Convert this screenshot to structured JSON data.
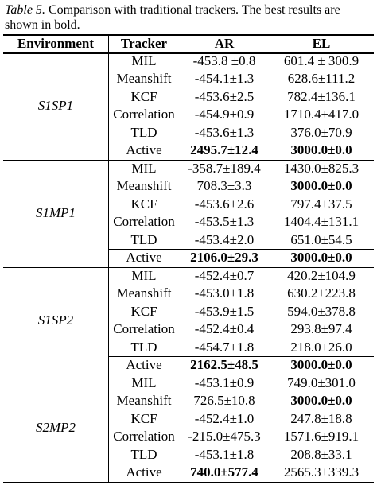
{
  "caption": {
    "label": "Table 5.",
    "text": " Comparison with traditional trackers. The best results are shown in bold."
  },
  "table": {
    "headers": [
      "Environment",
      "Tracker",
      "AR",
      "EL"
    ],
    "groups": [
      {
        "environment": "S1SP1",
        "rows": [
          {
            "tracker": "MIL",
            "ar": "-453.8 ±0.8",
            "el": "601.4 ± 300.9",
            "ar_bold": false,
            "el_bold": false
          },
          {
            "tracker": "Meanshift",
            "ar": "-454.1±1.3",
            "el": "628.6±111.2",
            "ar_bold": false,
            "el_bold": false
          },
          {
            "tracker": "KCF",
            "ar": "-453.6±2.5",
            "el": "782.4±136.1",
            "ar_bold": false,
            "el_bold": false
          },
          {
            "tracker": "Correlation",
            "ar": "-454.9±0.9",
            "el": "1710.4±417.0",
            "ar_bold": false,
            "el_bold": false
          },
          {
            "tracker": "TLD",
            "ar": "-453.6±1.3",
            "el": "376.0±70.9",
            "ar_bold": false,
            "el_bold": false
          },
          {
            "tracker": "Active",
            "ar": "2495.7±12.4",
            "el": "3000.0±0.0",
            "ar_bold": true,
            "el_bold": true
          }
        ]
      },
      {
        "environment": "S1MP1",
        "rows": [
          {
            "tracker": "MIL",
            "ar": "-358.7±189.4",
            "el": "1430.0±825.3",
            "ar_bold": false,
            "el_bold": false
          },
          {
            "tracker": "Meanshift",
            "ar": "708.3±3.3",
            "el": "3000.0±0.0",
            "ar_bold": false,
            "el_bold": true
          },
          {
            "tracker": "KCF",
            "ar": "-453.6±2.6",
            "el": "797.4±37.5",
            "ar_bold": false,
            "el_bold": false
          },
          {
            "tracker": "Correlation",
            "ar": "-453.5±1.3",
            "el": "1404.4±131.1",
            "ar_bold": false,
            "el_bold": false
          },
          {
            "tracker": "TLD",
            "ar": "-453.4±2.0",
            "el": "651.0±54.5",
            "ar_bold": false,
            "el_bold": false
          },
          {
            "tracker": "Active",
            "ar": "2106.0±29.3",
            "el": "3000.0±0.0",
            "ar_bold": true,
            "el_bold": true
          }
        ]
      },
      {
        "environment": "S1SP2",
        "rows": [
          {
            "tracker": "MIL",
            "ar": "-452.4±0.7",
            "el": "420.2±104.9",
            "ar_bold": false,
            "el_bold": false
          },
          {
            "tracker": "Meanshift",
            "ar": "-453.0±1.8",
            "el": "630.2±223.8",
            "ar_bold": false,
            "el_bold": false
          },
          {
            "tracker": "KCF",
            "ar": "-453.9±1.5",
            "el": "594.0±378.8",
            "ar_bold": false,
            "el_bold": false
          },
          {
            "tracker": "Correlation",
            "ar": "-452.4±0.4",
            "el": "293.8±97.4",
            "ar_bold": false,
            "el_bold": false
          },
          {
            "tracker": "TLD",
            "ar": "-454.7±1.8",
            "el": "218.0±26.0",
            "ar_bold": false,
            "el_bold": false
          },
          {
            "tracker": "Active",
            "ar": "2162.5±48.5",
            "el": "3000.0±0.0",
            "ar_bold": true,
            "el_bold": true
          }
        ]
      },
      {
        "environment": "S2MP2",
        "rows": [
          {
            "tracker": "MIL",
            "ar": "-453.1±0.9",
            "el": "749.0±301.0",
            "ar_bold": false,
            "el_bold": false
          },
          {
            "tracker": "Meanshift",
            "ar": "726.5±10.8",
            "el": "3000.0±0.0",
            "ar_bold": false,
            "el_bold": true
          },
          {
            "tracker": "KCF",
            "ar": "-452.4±1.0",
            "el": "247.8±18.8",
            "ar_bold": false,
            "el_bold": false
          },
          {
            "tracker": "Correlation",
            "ar": "-215.0±475.3",
            "el": "1571.6±919.1",
            "ar_bold": false,
            "el_bold": false
          },
          {
            "tracker": "TLD",
            "ar": "-453.1±1.8",
            "el": "208.8±33.1",
            "ar_bold": false,
            "el_bold": false
          },
          {
            "tracker": "Active",
            "ar": "740.0±577.4",
            "el": "2565.3±339.3",
            "ar_bold": true,
            "el_bold": false
          }
        ]
      }
    ]
  }
}
